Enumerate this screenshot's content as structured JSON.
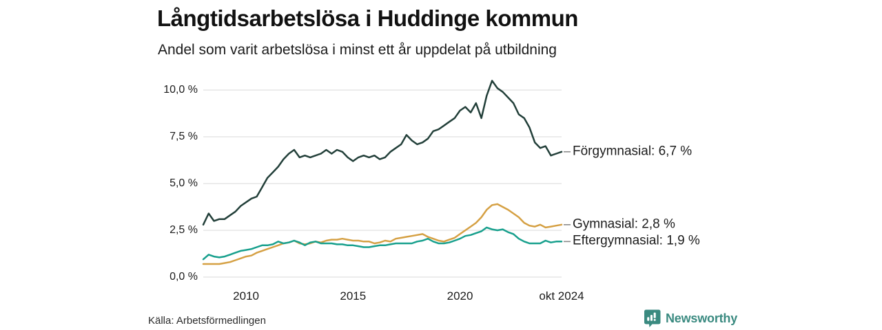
{
  "header": {
    "title": "Långtidsarbetslösa i Huddinge kommun",
    "subtitle": "Andel som varit arbetslösa i minst ett år uppdelat på utbildning"
  },
  "footer": {
    "source": "Källa: Arbetsförmedlingen",
    "brand": "Newsworthy",
    "brand_color": "#3a8a80"
  },
  "chart_data": {
    "type": "line",
    "title": "Långtidsarbetslösa i Huddinge kommun",
    "subtitle": "Andel som varit arbetslösa i minst ett år uppdelat på utbildning",
    "xlabel": "",
    "ylabel": "",
    "grid": true,
    "gridline_color": "#e1e1e1",
    "legend_position": "right-of-line-ends",
    "x_range": [
      2008,
      2024.75
    ],
    "ylim": [
      0,
      10.5
    ],
    "y_ticks": [
      {
        "value": 10.0,
        "label": "10,0 %"
      },
      {
        "value": 7.5,
        "label": "7,5 %"
      },
      {
        "value": 5.0,
        "label": "5,0 %"
      },
      {
        "value": 2.5,
        "label": "2,5 %"
      },
      {
        "value": 0.0,
        "label": "0,0 %"
      }
    ],
    "x_ticks": [
      {
        "value": 2010,
        "label": "2010"
      },
      {
        "value": 2015,
        "label": "2015"
      },
      {
        "value": 2020,
        "label": "2020"
      },
      {
        "value": 2024.75,
        "label": "okt 2024"
      }
    ],
    "x": [
      2008,
      2008.25,
      2008.5,
      2008.75,
      2009,
      2009.25,
      2009.5,
      2009.75,
      2010,
      2010.25,
      2010.5,
      2010.75,
      2011,
      2011.25,
      2011.5,
      2011.75,
      2012,
      2012.25,
      2012.5,
      2012.75,
      2013,
      2013.25,
      2013.5,
      2013.75,
      2014,
      2014.25,
      2014.5,
      2014.75,
      2015,
      2015.25,
      2015.5,
      2015.75,
      2016,
      2016.25,
      2016.5,
      2016.75,
      2017,
      2017.25,
      2017.5,
      2017.75,
      2018,
      2018.25,
      2018.5,
      2018.75,
      2019,
      2019.25,
      2019.5,
      2019.75,
      2020,
      2020.25,
      2020.5,
      2020.75,
      2021,
      2021.25,
      2021.5,
      2021.75,
      2022,
      2022.25,
      2022.5,
      2022.75,
      2023,
      2023.25,
      2023.5,
      2023.75,
      2024,
      2024.25,
      2024.5,
      2024.75
    ],
    "series": [
      {
        "name": "Förgymnasial",
        "legend_label": "Förgymnasial: 6,7 %",
        "end_value_label": "6,7 %",
        "color": "#223f39",
        "values": [
          2.8,
          3.4,
          3.0,
          3.1,
          3.1,
          3.3,
          3.5,
          3.8,
          4.0,
          4.2,
          4.3,
          4.8,
          5.3,
          5.6,
          5.9,
          6.3,
          6.6,
          6.8,
          6.4,
          6.5,
          6.4,
          6.5,
          6.6,
          6.8,
          6.6,
          6.8,
          6.7,
          6.4,
          6.2,
          6.4,
          6.5,
          6.4,
          6.5,
          6.3,
          6.4,
          6.7,
          6.9,
          7.1,
          7.6,
          7.3,
          7.1,
          7.2,
          7.4,
          7.8,
          7.9,
          8.1,
          8.3,
          8.5,
          8.9,
          9.1,
          8.8,
          9.3,
          8.5,
          9.7,
          10.5,
          10.1,
          9.9,
          9.6,
          9.3,
          8.7,
          8.5,
          8.0,
          7.2,
          6.9,
          7.0,
          6.5,
          6.6,
          6.7
        ]
      },
      {
        "name": "Gymnasial",
        "legend_label": "Gymnasial: 2,8 %",
        "end_value_label": "2,8 %",
        "color": "#d5a043",
        "values": [
          0.7,
          0.7,
          0.7,
          0.7,
          0.75,
          0.8,
          0.9,
          1.0,
          1.1,
          1.15,
          1.3,
          1.4,
          1.5,
          1.6,
          1.7,
          1.8,
          1.85,
          1.95,
          1.8,
          1.75,
          1.8,
          1.9,
          1.85,
          1.95,
          2.0,
          2.0,
          2.05,
          2.0,
          1.95,
          1.95,
          1.9,
          1.9,
          1.8,
          1.85,
          1.95,
          1.9,
          2.05,
          2.1,
          2.15,
          2.2,
          2.25,
          2.3,
          2.15,
          2.05,
          1.95,
          1.9,
          2.0,
          2.1,
          2.3,
          2.5,
          2.7,
          2.9,
          3.2,
          3.6,
          3.85,
          3.9,
          3.75,
          3.6,
          3.4,
          3.2,
          2.9,
          2.75,
          2.7,
          2.8,
          2.65,
          2.7,
          2.75,
          2.8
        ]
      },
      {
        "name": "Eftergymnasial",
        "legend_label": "Eftergymnasial: 1,9 %",
        "end_value_label": "1,9 %",
        "color": "#169f8c",
        "values": [
          0.95,
          1.2,
          1.1,
          1.05,
          1.1,
          1.2,
          1.3,
          1.4,
          1.45,
          1.5,
          1.6,
          1.7,
          1.7,
          1.75,
          1.9,
          1.8,
          1.85,
          1.95,
          1.85,
          1.7,
          1.85,
          1.9,
          1.8,
          1.8,
          1.8,
          1.75,
          1.75,
          1.7,
          1.7,
          1.65,
          1.6,
          1.6,
          1.65,
          1.7,
          1.7,
          1.75,
          1.8,
          1.8,
          1.8,
          1.8,
          1.9,
          1.95,
          2.05,
          1.9,
          1.8,
          1.8,
          1.85,
          1.95,
          2.05,
          2.2,
          2.25,
          2.35,
          2.45,
          2.65,
          2.55,
          2.5,
          2.55,
          2.4,
          2.3,
          2.05,
          1.9,
          1.8,
          1.8,
          1.8,
          1.95,
          1.85,
          1.9,
          1.9
        ]
      }
    ]
  }
}
